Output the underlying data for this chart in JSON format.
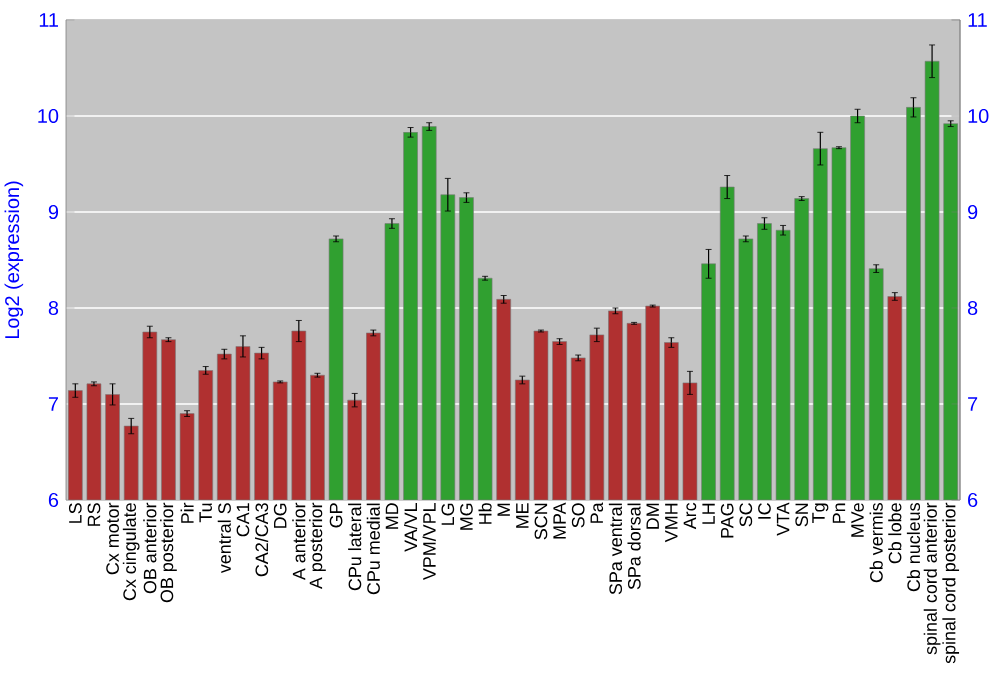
{
  "chart_data": {
    "type": "bar",
    "ylabel": "Log2 (expression)",
    "categories": [
      "LS",
      "RS",
      "Cx motor",
      "Cx cingulate",
      "OB anterior",
      "OB posterior",
      "Pir",
      "Tu",
      "ventral S",
      "CA1",
      "CA2/CA3",
      "DG",
      "A anterior",
      "A posterior",
      "GP",
      "CPu lateral",
      "CPu medial",
      "MD",
      "VA/VL",
      "VPM/VPL",
      "LG",
      "MG",
      "Hb",
      "M",
      "ME",
      "SCN",
      "MPA",
      "SO",
      "Pa",
      "SPa ventral",
      "SPa dorsal",
      "DM",
      "VMH",
      "Arc",
      "LH",
      "PAG",
      "SC",
      "IC",
      "VTA",
      "SN",
      "Tg",
      "Pn",
      "MVe",
      "Cb vermis",
      "Cb lobe",
      "Cb nucleus",
      "spinal cord anterior",
      "spinal cord posterior"
    ],
    "values": [
      7.14,
      7.21,
      7.1,
      6.77,
      7.75,
      7.67,
      6.9,
      7.35,
      7.52,
      7.6,
      7.53,
      7.23,
      7.76,
      7.3,
      8.72,
      7.04,
      7.74,
      8.88,
      9.83,
      9.89,
      9.18,
      9.15,
      8.31,
      8.09,
      7.25,
      7.76,
      7.65,
      7.48,
      7.72,
      7.97,
      7.84,
      8.02,
      7.64,
      7.22,
      8.46,
      9.26,
      8.72,
      8.88,
      8.81,
      9.14,
      9.66,
      9.67,
      10.0,
      8.41,
      8.12,
      10.09,
      10.57,
      9.92
    ],
    "errors": [
      0.07,
      0.02,
      0.11,
      0.08,
      0.06,
      0.02,
      0.03,
      0.04,
      0.05,
      0.11,
      0.06,
      0.01,
      0.11,
      0.02,
      0.03,
      0.07,
      0.03,
      0.05,
      0.05,
      0.04,
      0.17,
      0.05,
      0.02,
      0.04,
      0.04,
      0.01,
      0.03,
      0.03,
      0.07,
      0.03,
      0.01,
      0.01,
      0.05,
      0.12,
      0.15,
      0.12,
      0.03,
      0.06,
      0.05,
      0.02,
      0.17,
      0.01,
      0.07,
      0.04,
      0.04,
      0.1,
      0.17,
      0.03
    ],
    "colors": [
      "#b03030",
      "#b03030",
      "#b03030",
      "#b03030",
      "#b03030",
      "#b03030",
      "#b03030",
      "#b03030",
      "#b03030",
      "#b03030",
      "#b03030",
      "#b03030",
      "#b03030",
      "#b03030",
      "#30a030",
      "#b03030",
      "#b03030",
      "#30a030",
      "#30a030",
      "#30a030",
      "#30a030",
      "#30a030",
      "#30a030",
      "#b03030",
      "#b03030",
      "#b03030",
      "#b03030",
      "#b03030",
      "#b03030",
      "#b03030",
      "#b03030",
      "#b03030",
      "#b03030",
      "#b03030",
      "#30a030",
      "#30a030",
      "#30a030",
      "#30a030",
      "#30a030",
      "#30a030",
      "#30a030",
      "#30a030",
      "#30a030",
      "#30a030",
      "#b03030",
      "#30a030",
      "#30a030",
      "#30a030"
    ],
    "ylim": [
      6,
      11
    ],
    "yticks": [
      6,
      7,
      8,
      9,
      10,
      11
    ],
    "y2lim": [
      6,
      11
    ],
    "y2ticks": [
      6,
      7,
      8,
      9,
      10,
      11
    ],
    "grid": "y"
  }
}
